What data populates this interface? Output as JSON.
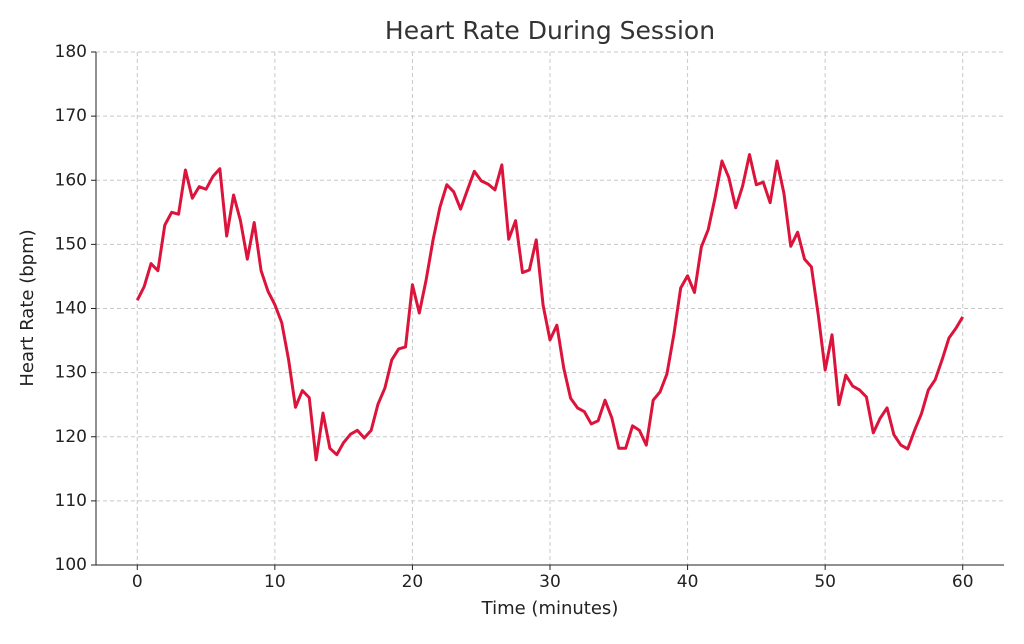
{
  "chart_data": {
    "type": "line",
    "title": "Heart Rate During Session",
    "xlabel": "Time (minutes)",
    "ylabel": "Heart Rate (bpm)",
    "x": [
      0,
      0.5,
      1,
      1.5,
      2,
      2.5,
      3,
      3.5,
      4,
      4.5,
      5,
      5.5,
      6,
      6.5,
      7,
      7.5,
      8,
      8.5,
      9,
      9.5,
      10,
      10.5,
      11,
      11.5,
      12,
      12.5,
      13,
      13.5,
      14,
      14.5,
      15,
      15.5,
      16,
      16.5,
      17,
      17.5,
      18,
      18.5,
      19,
      19.5,
      20,
      20.5,
      21,
      21.5,
      22,
      22.5,
      23,
      23.5,
      24,
      24.5,
      25,
      25.5,
      26,
      26.5,
      27,
      27.5,
      28,
      28.5,
      29,
      29.5,
      30,
      30.5,
      31,
      31.5,
      32,
      32.5,
      33,
      33.5,
      34,
      34.5,
      35,
      35.5,
      36,
      36.5,
      37,
      37.5,
      38,
      38.5,
      39,
      39.5,
      40,
      40.5,
      41,
      41.5,
      42,
      42.5,
      43,
      43.5,
      44,
      44.5,
      45,
      45.5,
      46,
      46.5,
      47,
      47.5,
      48,
      48.5,
      49,
      49.5,
      50,
      50.5,
      51,
      51.5,
      52,
      52.5,
      53,
      53.5,
      54,
      54.5,
      55,
      55.5,
      56,
      56.5,
      57,
      57.5,
      58,
      58.5,
      59,
      59.5,
      60
    ],
    "series": [
      {
        "name": "Heart Rate",
        "color": "#dc143c",
        "values": [
          141.3,
          143.4,
          147,
          145.9,
          153,
          155,
          154.7,
          161.6,
          157.2,
          159,
          158.6,
          160.6,
          161.8,
          151.3,
          157.7,
          153.7,
          147.7,
          153.4,
          145.9,
          142.7,
          140.6,
          137.8,
          132,
          124.6,
          127.2,
          126.1,
          116.4,
          123.7,
          118.2,
          117.2,
          119.1,
          120.4,
          121,
          119.8,
          121,
          125.1,
          127.6,
          132,
          133.7,
          134,
          143.7,
          139.3,
          144.5,
          150.7,
          155.8,
          159.3,
          158.2,
          155.5,
          158.5,
          161.4,
          159.9,
          159.4,
          158.5,
          162.4,
          150.8,
          153.7,
          145.6,
          146,
          150.7,
          140.5,
          135.1,
          137.4,
          130.7,
          126,
          124.5,
          123.9,
          122,
          122.5,
          125.7,
          122.9,
          118.2,
          118.2,
          121.7,
          121,
          118.7,
          125.7,
          127,
          129.8,
          135.9,
          143.2,
          145.1,
          142.5,
          149.6,
          152.3,
          157.3,
          163,
          160.4,
          155.7,
          159.1,
          164,
          159.3,
          159.7,
          156.5,
          163,
          158,
          149.7,
          151.9,
          147.7,
          146.5,
          139,
          130.4,
          135.9,
          125,
          129.6,
          127.9,
          127.3,
          126.2,
          120.6,
          122.9,
          124.5,
          120.3,
          118.7,
          118.1,
          121,
          123.6,
          127.3,
          128.9,
          132,
          135.4,
          136.9,
          138.7
        ]
      }
    ],
    "xlim": [
      -3,
      63
    ],
    "xticks": [
      0,
      10,
      20,
      30,
      40,
      50,
      60
    ],
    "ylim": [
      100,
      180
    ],
    "yticks": [
      100,
      110,
      120,
      130,
      140,
      150,
      160,
      170,
      180
    ],
    "grid": true
  }
}
